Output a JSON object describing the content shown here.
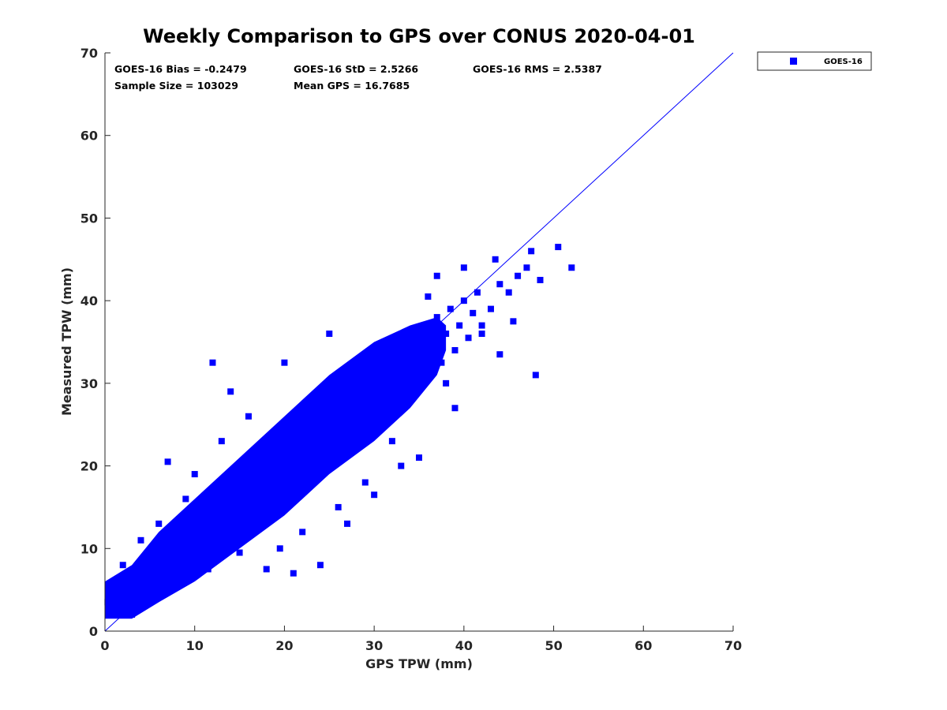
{
  "chart_data": {
    "type": "scatter",
    "title": "Weekly Comparison to GPS over CONUS 2020-04-01",
    "xlabel": "GPS TPW (mm)",
    "ylabel": "Measured TPW (mm)",
    "xlim": [
      0,
      70
    ],
    "ylim": [
      0,
      70
    ],
    "xticks": [
      0,
      10,
      20,
      30,
      40,
      50,
      60,
      70
    ],
    "yticks": [
      0,
      10,
      20,
      30,
      40,
      50,
      60,
      70
    ],
    "x_tick_labels": [
      "0",
      "10",
      "20",
      "30",
      "40",
      "50",
      "60",
      "70"
    ],
    "y_tick_labels": [
      "0",
      "10",
      "20",
      "30",
      "40",
      "50",
      "60",
      "70"
    ],
    "grid": false,
    "legend_position": "outside-top-right",
    "marker": "square",
    "reference_line": "1:1",
    "annotations": {
      "bias": "GOES-16 Bias = -0.2479",
      "std": "GOES-16 StD = 2.5266",
      "rms": "GOES-16 RMS = 2.5387",
      "sample_size": "Sample Size = 103029",
      "mean_gps": "Mean GPS = 16.7685"
    },
    "series": [
      {
        "name": "GOES-16",
        "color": "#0000ff",
        "points": [
          [
            0.3,
            3.5
          ],
          [
            0.5,
            4.5
          ],
          [
            0.8,
            3.0
          ],
          [
            1.0,
            4.0
          ],
          [
            1.2,
            2.5
          ],
          [
            1.5,
            3.8
          ],
          [
            1.8,
            5.0
          ],
          [
            2.0,
            3.2
          ],
          [
            2.2,
            6.0
          ],
          [
            2.5,
            4.0
          ],
          [
            2.8,
            7.0
          ],
          [
            3.0,
            2.0
          ],
          [
            3.2,
            5.5
          ],
          [
            3.5,
            3.0
          ],
          [
            3.8,
            6.5
          ],
          [
            4.0,
            4.5
          ],
          [
            4.2,
            7.5
          ],
          [
            4.5,
            3.5
          ],
          [
            4.8,
            8.0
          ],
          [
            5.0,
            5.0
          ],
          [
            5.5,
            6.0
          ],
          [
            6.0,
            9.0
          ],
          [
            6.2,
            4.5
          ],
          [
            6.5,
            7.5
          ],
          [
            7.0,
            10.0
          ],
          [
            7.2,
            5.5
          ],
          [
            7.5,
            8.5
          ],
          [
            8.0,
            11.0
          ],
          [
            8.2,
            6.0
          ],
          [
            8.5,
            9.5
          ],
          [
            9.0,
            12.0
          ],
          [
            9.2,
            7.0
          ],
          [
            9.5,
            10.0
          ],
          [
            10.0,
            13.0
          ],
          [
            10.2,
            8.0
          ],
          [
            10.5,
            11.0
          ],
          [
            11.0,
            14.5
          ],
          [
            11.2,
            9.0
          ],
          [
            11.5,
            12.0
          ],
          [
            12.0,
            15.0
          ],
          [
            12.2,
            9.5
          ],
          [
            12.5,
            13.0
          ],
          [
            13.0,
            16.5
          ],
          [
            13.2,
            10.0
          ],
          [
            13.5,
            14.0
          ],
          [
            14.0,
            17.0
          ],
          [
            14.2,
            11.0
          ],
          [
            14.5,
            15.0
          ],
          [
            15.0,
            18.5
          ],
          [
            15.2,
            12.0
          ],
          [
            15.5,
            16.0
          ],
          [
            16.0,
            20.0
          ],
          [
            16.2,
            13.0
          ],
          [
            16.5,
            17.0
          ],
          [
            17.0,
            21.0
          ],
          [
            17.2,
            14.0
          ],
          [
            17.5,
            18.0
          ],
          [
            18.0,
            22.5
          ],
          [
            18.2,
            14.5
          ],
          [
            18.5,
            19.0
          ],
          [
            19.0,
            23.0
          ],
          [
            19.2,
            15.0
          ],
          [
            19.5,
            20.0
          ],
          [
            20.0,
            24.5
          ],
          [
            20.2,
            16.0
          ],
          [
            20.5,
            21.0
          ],
          [
            21.0,
            25.0
          ],
          [
            21.2,
            17.0
          ],
          [
            21.5,
            22.0
          ],
          [
            22.0,
            26.5
          ],
          [
            22.2,
            18.0
          ],
          [
            22.5,
            23.0
          ],
          [
            23.0,
            27.0
          ],
          [
            23.2,
            19.0
          ],
          [
            23.5,
            24.0
          ],
          [
            24.0,
            28.5
          ],
          [
            24.2,
            20.0
          ],
          [
            24.5,
            25.0
          ],
          [
            25.0,
            29.0
          ],
          [
            25.2,
            21.0
          ],
          [
            25.5,
            26.0
          ],
          [
            26.0,
            30.5
          ],
          [
            26.2,
            22.0
          ],
          [
            26.5,
            27.0
          ],
          [
            27.0,
            31.0
          ],
          [
            27.2,
            23.0
          ],
          [
            27.5,
            28.0
          ],
          [
            28.0,
            32.0
          ],
          [
            28.2,
            24.0
          ],
          [
            28.5,
            29.0
          ],
          [
            29.0,
            33.0
          ],
          [
            29.2,
            25.0
          ],
          [
            29.5,
            30.0
          ],
          [
            30.0,
            34.0
          ],
          [
            30.2,
            26.0
          ],
          [
            30.5,
            31.0
          ],
          [
            31.0,
            34.5
          ],
          [
            31.5,
            27.5
          ],
          [
            32.0,
            32.0
          ],
          [
            32.5,
            35.0
          ],
          [
            33.0,
            29.0
          ],
          [
            33.5,
            33.0
          ],
          [
            34.0,
            36.0
          ],
          [
            34.5,
            30.0
          ],
          [
            35.0,
            34.0
          ],
          [
            35.5,
            37.0
          ],
          [
            36.0,
            31.0
          ],
          [
            36.5,
            35.0
          ],
          [
            37.0,
            38.0
          ],
          [
            37.5,
            32.5
          ],
          [
            38.0,
            36.0
          ],
          [
            38.5,
            39.0
          ],
          [
            39.0,
            34.0
          ],
          [
            39.5,
            37.0
          ],
          [
            40.0,
            40.0
          ],
          [
            40.5,
            35.5
          ],
          [
            41.0,
            38.5
          ],
          [
            41.5,
            41.0
          ],
          [
            42.0,
            37.0
          ],
          [
            43.0,
            39.0
          ],
          [
            44.0,
            42.0
          ],
          [
            45.0,
            41.0
          ],
          [
            46.0,
            43.0
          ],
          [
            47.0,
            44.0
          ],
          [
            47.5,
            46.0
          ],
          [
            48.0,
            31.0
          ],
          [
            48.5,
            42.5
          ],
          [
            50.5,
            46.5
          ],
          [
            52.0,
            44.0
          ],
          [
            12.0,
            32.5
          ],
          [
            14.0,
            29.0
          ],
          [
            16.0,
            26.0
          ],
          [
            20.0,
            32.5
          ],
          [
            25.0,
            36.0
          ],
          [
            7.0,
            20.5
          ],
          [
            9.0,
            16.0
          ],
          [
            18.0,
            7.5
          ],
          [
            21.0,
            7.0
          ],
          [
            24.0,
            8.0
          ],
          [
            27.0,
            13.0
          ],
          [
            30.0,
            16.5
          ],
          [
            33.0,
            20.0
          ],
          [
            35.0,
            21.0
          ],
          [
            11.5,
            7.5
          ],
          [
            15.0,
            9.5
          ],
          [
            19.5,
            10.0
          ],
          [
            22.0,
            12.0
          ],
          [
            26.0,
            15.0
          ],
          [
            29.0,
            18.0
          ],
          [
            32.0,
            23.0
          ],
          [
            44.0,
            33.5
          ],
          [
            45.5,
            37.5
          ],
          [
            2.0,
            8.0
          ],
          [
            4.0,
            11.0
          ],
          [
            6.0,
            13.0
          ],
          [
            10.0,
            19.0
          ],
          [
            13.0,
            23.0
          ],
          [
            37.0,
            43.0
          ],
          [
            40.0,
            44.0
          ],
          [
            43.5,
            45.0
          ],
          [
            36.0,
            40.5
          ],
          [
            42.0,
            36.0
          ],
          [
            38.0,
            30.0
          ],
          [
            39.0,
            27.0
          ]
        ]
      }
    ]
  }
}
